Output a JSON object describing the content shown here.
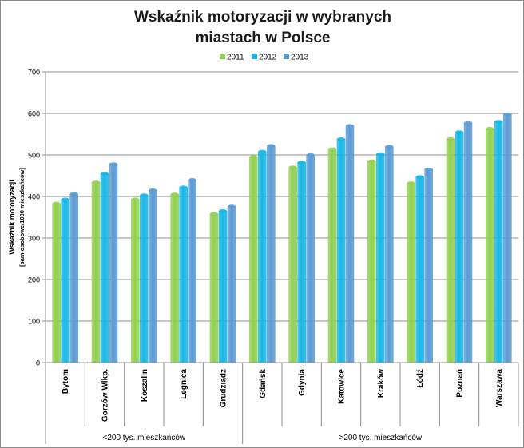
{
  "chart_data": {
    "type": "bar",
    "title_line1": "Wskaźnik motoryzacji w wybranych",
    "title_line2": "miastach w Polsce",
    "ylabel_line1": "Wskaźnik motoryzacji",
    "ylabel_line2": "[sam.osobowe/1000 mieszkańców]",
    "xlabel": "",
    "ylim": [
      0,
      700
    ],
    "yticks": [
      "0",
      "100",
      "200",
      "300",
      "400",
      "500",
      "600",
      "700"
    ],
    "grid": true,
    "legend_position": "top",
    "categories": [
      "Bytom",
      "Gorzów Wlkp.",
      "Koszalin",
      "Legnica",
      "Grudziądz",
      "Gdańsk",
      "Gdynia",
      "Katowice",
      "Kraków",
      "Łódź",
      "Poznań",
      "Warszawa"
    ],
    "groups": [
      {
        "label": "<200 tys. mieszkańców",
        "count": 5
      },
      {
        "label": ">200 tys. mieszkańców",
        "count": 7
      }
    ],
    "series": [
      {
        "name": "2011",
        "color": "#92d050",
        "values": [
          383,
          434,
          393,
          405,
          358,
          495,
          470,
          514,
          485,
          432,
          538,
          563
        ]
      },
      {
        "name": "2012",
        "color": "#17b7e6",
        "values": [
          393,
          455,
          403,
          422,
          365,
          508,
          482,
          538,
          502,
          447,
          555,
          580
        ]
      },
      {
        "name": "2013",
        "color": "#5b9bd5",
        "values": [
          406,
          478,
          415,
          440,
          376,
          522,
          500,
          570,
          520,
          465,
          577,
          598
        ]
      }
    ]
  }
}
